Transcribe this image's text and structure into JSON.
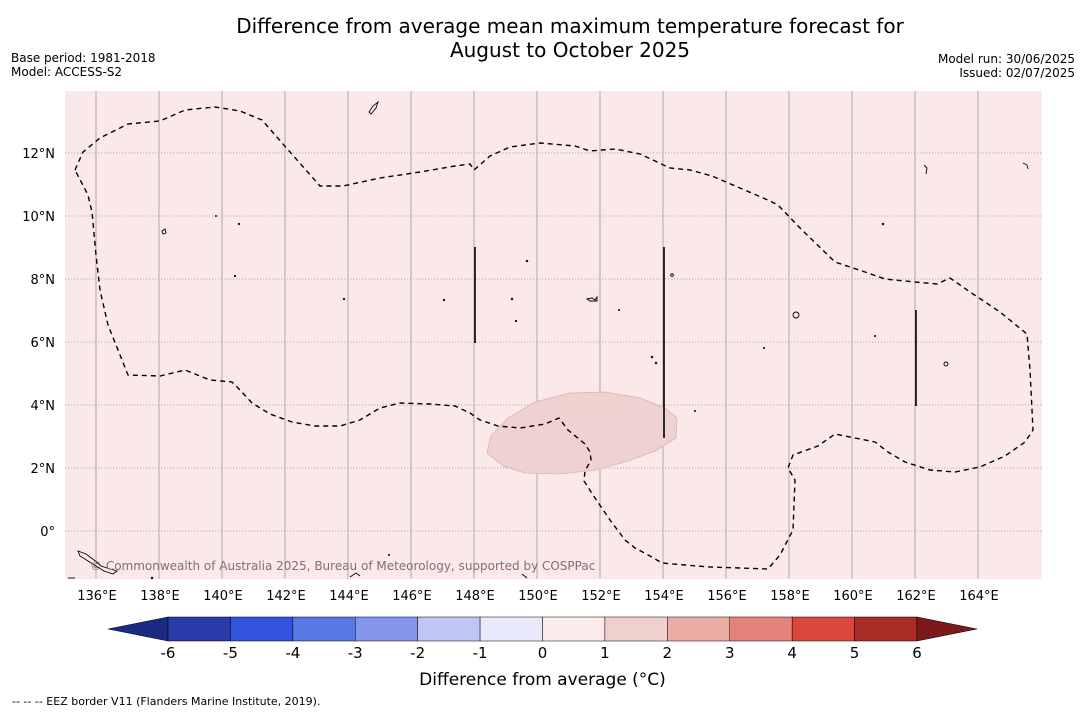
{
  "title_line1": "Difference from average mean maximum temperature forecast for",
  "title_line2": "August to October 2025",
  "base_period": "Base period: 1981-2018",
  "model": "Model: ACCESS-S2",
  "model_run": "Model run: 30/06/2025",
  "issued": "Issued: 02/07/2025",
  "copyright": "© Commonwealth of Australia 2025, Bureau of Meteorology, supported by COSPPac",
  "footnote": "--  --  -- EEZ border V11 (Flanders Marine Institute, 2019).",
  "colorbar": {
    "label": "Difference from average (°C)",
    "ticks": [
      "-6",
      "-5",
      "-4",
      "-3",
      "-2",
      "-1",
      "0",
      "1",
      "2",
      "3",
      "4",
      "5",
      "6"
    ],
    "bin_colors": [
      "#2a3ca8",
      "#3352e0",
      "#5a77e6",
      "#8596ec",
      "#bfc6f4",
      "#e8eafb",
      "#fcebeb",
      "#f0d0cd",
      "#ebaca6",
      "#e5827a",
      "#d9473d",
      "#a92b25"
    ],
    "under_color": "#1a2a80",
    "over_color": "#7a1a1a"
  },
  "map": {
    "background_color": "#fbe9e9",
    "anomaly_patch_color": "#efd2d0",
    "lon_range": [
      135,
      166
    ],
    "lat_range": [
      -1.5,
      14
    ],
    "lon_ticks": [
      "136°E",
      "138°E",
      "140°E",
      "142°E",
      "144°E",
      "146°E",
      "148°E",
      "150°E",
      "152°E",
      "154°E",
      "156°E",
      "158°E",
      "160°E",
      "162°E",
      "164°E"
    ],
    "lat_ticks": [
      "12°N",
      "10°N",
      "8°N",
      "6°N",
      "4°N",
      "2°N",
      "0°"
    ]
  }
}
